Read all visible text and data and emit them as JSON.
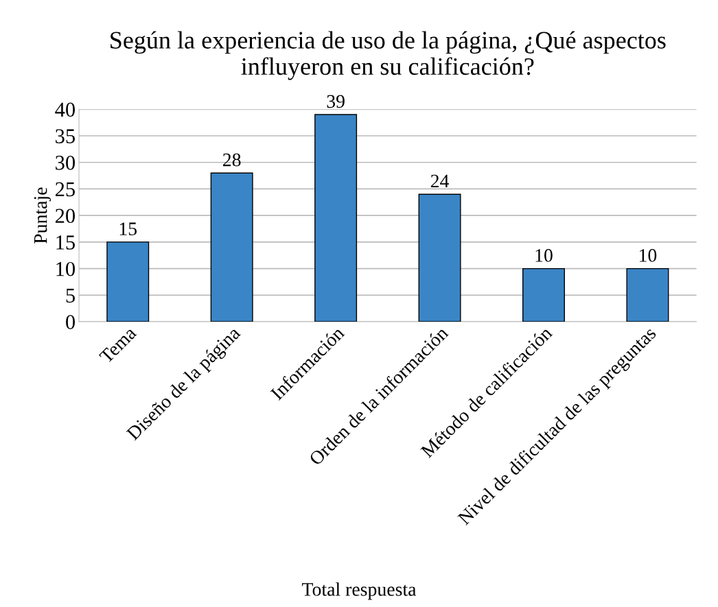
{
  "chart_data": {
    "type": "bar",
    "title": "Según la experiencia de uso de la página, ¿Qué aspectos influyeron en su calificación?",
    "xlabel": "Total respuesta",
    "ylabel": "Puntaje",
    "categories": [
      "Tema",
      "Diseño de la página",
      "Información",
      "Orden de la información",
      "Método de calificación",
      "Nivel de dificultad de las preguntas"
    ],
    "values": [
      15,
      28,
      39,
      24,
      10,
      10
    ],
    "color": "#3a85c6",
    "ylim": [
      0,
      40
    ],
    "yticks": [
      0,
      5,
      10,
      15,
      20,
      25,
      30,
      35,
      40
    ],
    "grid": "y",
    "data_labels": true,
    "legend": false
  }
}
